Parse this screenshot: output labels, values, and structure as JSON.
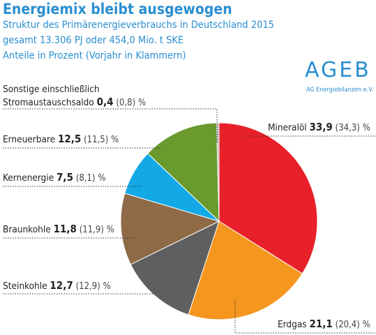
{
  "header": {
    "title": "Energiemix bleibt ausgewogen",
    "subtitle_1": "Struktur des Primärenergieverbrauchs in Deutschland 2015",
    "subtitle_2": "gesamt 13.306 PJ oder 454,0 Mio. t SKE",
    "subtitle_3": "Anteile in Prozent (Vorjahr in Klammern)"
  },
  "logo": {
    "text": "AGEB",
    "subtext": "AG Energiebilanzen e.V."
  },
  "unit": "%",
  "chart_data": {
    "type": "pie",
    "title": "Energiemix bleibt ausgewogen",
    "unit": "%",
    "slices": [
      {
        "name": "Mineralöl",
        "value": 33.9,
        "value_label": "33,9",
        "prev_label": "(34,3)",
        "color": "#e8202a"
      },
      {
        "name": "Erdgas",
        "value": 21.1,
        "value_label": "21,1",
        "prev_label": "(20,4)",
        "color": "#f5961e"
      },
      {
        "name": "Steinkohle",
        "value": 12.7,
        "value_label": "12,7",
        "prev_label": "(12,9)",
        "color": "#5f5f5f"
      },
      {
        "name": "Braunkohle",
        "value": 11.8,
        "value_label": "11,8",
        "prev_label": "(11,9)",
        "color": "#8e6a47"
      },
      {
        "name": "Kernenergie",
        "value": 7.5,
        "value_label": "7,5",
        "prev_label": "(8,1)",
        "color": "#12a9e6"
      },
      {
        "name": "Erneuerbare",
        "value": 12.5,
        "value_label": "12,5",
        "prev_label": "(11,5)",
        "color": "#6a9a2e"
      },
      {
        "name_line1": "Sonstige einschließlich",
        "name": "Stromaustauschsaldo",
        "value": 0.4,
        "value_label": "0,4",
        "prev_label": "(0,8)",
        "color": "#b5b5b5"
      }
    ]
  }
}
